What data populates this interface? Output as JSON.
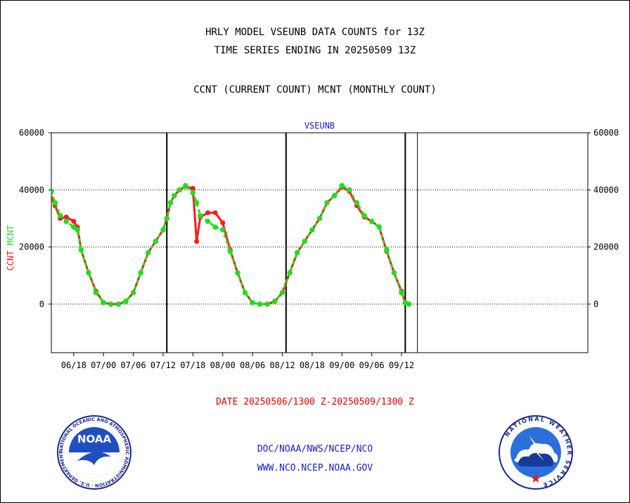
{
  "header": {
    "line1": "HRLY MODEL VSEUNB DATA COUNTS for 13Z",
    "line2": "TIME SERIES ENDING IN 20250509 13Z",
    "line3": "CCNT (CURRENT COUNT) MCNT (MONTHLY COUNT)"
  },
  "footer": {
    "date_range": "DATE 20250506/1300 Z-20250509/1300 Z",
    "org_path": "DOC/NOAA/NWS/NCEP/NCO",
    "website": "WWW.NCO.NCEP.NOAA.GOV"
  },
  "logos": {
    "noaa": {
      "text": "NOAA",
      "ring_text": "NATIONAL OCEANIC AND ATMOSPHERIC ADMINISTRATION · U.S. DEPARTMENT OF COMMERCE"
    },
    "nws": {
      "ring_text": "NATIONAL WEATHER SERVICE"
    }
  },
  "colors": {
    "ccnt": "#ff1a1a",
    "mcnt": "#22dd22",
    "title": "#1a1acc",
    "footer_date": "#e00000"
  },
  "chart_data": {
    "type": "line",
    "title": "VSEUNB",
    "ylabel_left": [
      "CCNT",
      "MCNT"
    ],
    "ylim": [
      -17000,
      60000
    ],
    "yticks": [
      0,
      20000,
      40000,
      60000
    ],
    "ytick_labels": [
      "0",
      "20000",
      "40000",
      "60000"
    ],
    "xlim": [
      0,
      72
    ],
    "xticks": [
      3,
      7,
      11,
      15,
      19,
      23,
      27,
      31,
      35,
      39,
      43,
      47
    ],
    "xtick_labels": [
      "06/18",
      "07/00",
      "07/06",
      "07/12",
      "07/18",
      "08/00",
      "08/06",
      "08/12",
      "08/18",
      "09/00",
      "09/06",
      "09/12"
    ],
    "vlines": [
      15.5,
      31.5,
      47.5
    ],
    "grid_y": [
      20000,
      40000
    ],
    "series": [
      {
        "name": "CCNT",
        "color": "#ff1a1a",
        "x": [
          0,
          0.5,
          1.2,
          2,
          3,
          3.5,
          4,
          5,
          6,
          7,
          8,
          9,
          10,
          11,
          12,
          13,
          14,
          15,
          15.5,
          16,
          16.5,
          17.2,
          18,
          19,
          19.5,
          20,
          21,
          22,
          23,
          24,
          25,
          26,
          27,
          28,
          29,
          30,
          31,
          32,
          33,
          34,
          35,
          36,
          37,
          38,
          39,
          40,
          41,
          42,
          43,
          44,
          45,
          46,
          47,
          47.5,
          48
        ],
        "y": [
          37000,
          34500,
          30000,
          30500,
          29000,
          27000,
          19000,
          11000,
          4500,
          500,
          0,
          0,
          1000,
          4000,
          11000,
          18000,
          22000,
          26000,
          30000,
          35500,
          38000,
          40000,
          41200,
          40500,
          22000,
          30500,
          32000,
          32000,
          28500,
          19000,
          11000,
          4000,
          500,
          0,
          0,
          1000,
          4000,
          11000,
          18000,
          22000,
          26000,
          30000,
          35500,
          38000,
          41000,
          39500,
          34500,
          30500,
          29000,
          27000,
          18500,
          11000,
          4500,
          500,
          0
        ]
      },
      {
        "name": "MCNT",
        "color": "#22dd22",
        "x": [
          0,
          0.5,
          1.2,
          2,
          3,
          3.5,
          4,
          5,
          6,
          7,
          8,
          9,
          10,
          11,
          12,
          13,
          14,
          15,
          15.5,
          16,
          16.5,
          17.2,
          18,
          19,
          19.5,
          20,
          21,
          22,
          23,
          24,
          25,
          26,
          27,
          28,
          29,
          30,
          31,
          32,
          33,
          34,
          35,
          36,
          37,
          38,
          39,
          40,
          41,
          42,
          43,
          44,
          45,
          46,
          47,
          47.5,
          48
        ],
        "y": [
          39500,
          35500,
          31000,
          29000,
          27000,
          26000,
          19000,
          11000,
          4000,
          500,
          0,
          0,
          1000,
          4000,
          11000,
          18000,
          22000,
          26000,
          30000,
          35500,
          38000,
          40000,
          41500,
          39000,
          35500,
          31000,
          29000,
          27000,
          26000,
          18500,
          11000,
          4000,
          500,
          0,
          0,
          1000,
          4000,
          11000,
          18000,
          22000,
          26000,
          30000,
          35500,
          38000,
          41500,
          40000,
          35500,
          31000,
          29000,
          27000,
          19000,
          11000,
          4000,
          500,
          0
        ]
      }
    ]
  }
}
